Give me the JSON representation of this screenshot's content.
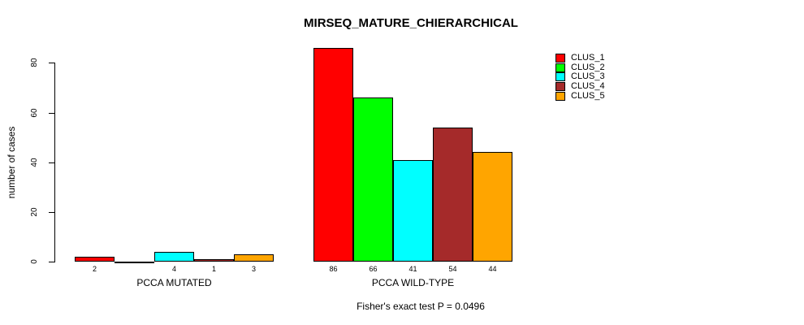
{
  "chart_data": {
    "type": "bar",
    "title": "MIRSEQ_MATURE_CHIERARCHICAL",
    "ylabel": "number of cases",
    "xlabel": "",
    "yticks": [
      0,
      20,
      40,
      60,
      80
    ],
    "ylim": [
      0,
      86
    ],
    "grid": false,
    "legend_position": "top-right",
    "legend_border": false,
    "series": [
      "CLUS_1",
      "CLUS_2",
      "CLUS_3",
      "CLUS_4",
      "CLUS_5"
    ],
    "colors": [
      "#ff0000",
      "#00ff00",
      "#00ffff",
      "#a52a2a",
      "#ffa500"
    ],
    "bar_border_color": "#000000",
    "categories": [
      "PCCA MUTATED",
      "PCCA WILD-TYPE"
    ],
    "groups": [
      {
        "label": "PCCA MUTATED",
        "values": [
          2,
          0,
          4,
          1,
          3
        ],
        "bar_labels": [
          "2",
          "",
          "4",
          "1",
          "3"
        ]
      },
      {
        "label": "PCCA WILD-TYPE",
        "values": [
          86,
          66,
          41,
          54,
          44
        ],
        "bar_labels": [
          "86",
          "66",
          "41",
          "54",
          "44"
        ]
      }
    ],
    "annotation": "Fisher's exact test P = 0.0496"
  }
}
